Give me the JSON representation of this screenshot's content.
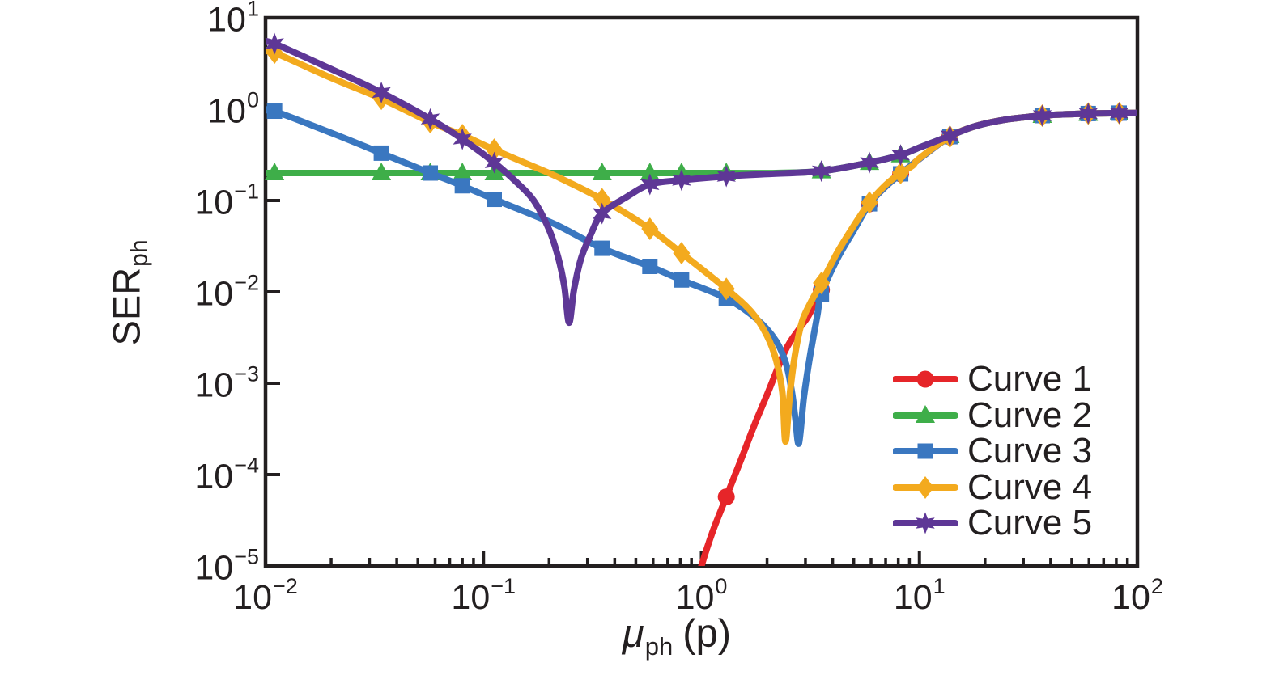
{
  "figure": {
    "background": "#ffffff",
    "axis_color": "#231f20",
    "text_color": "#231f20"
  },
  "chart_data": {
    "type": "line",
    "title": "",
    "xscale": "log",
    "yscale": "log",
    "xlim": [
      0.01,
      100
    ],
    "ylim": [
      1e-05,
      10
    ],
    "grid": false,
    "x_tick_exponents": [
      -2,
      -1,
      0,
      1,
      2
    ],
    "y_tick_exponents": [
      1,
      0,
      -1,
      -2,
      -3,
      -4,
      -5
    ],
    "xlabel": {
      "main": "μ",
      "sub": "ph",
      "suffix": "(p)"
    },
    "ylabel": {
      "main": "SER",
      "sub": "ph"
    },
    "legend": {
      "position": "lower-right"
    },
    "series": [
      {
        "name": "Curve 1",
        "color": "#e62529",
        "marker": "circle",
        "marker_x": [
          1.3,
          3.55,
          5.9,
          8.2,
          13.8,
          36.6,
          59.5,
          82.5
        ],
        "points": [
          [
            0.95,
            6.2e-06
          ],
          [
            1.0,
            1e-05
          ],
          [
            1.12,
            2.3e-05
          ],
          [
            1.3,
            5.7e-05
          ],
          [
            1.5,
            0.000135
          ],
          [
            1.75,
            0.00035
          ],
          [
            2.0,
            0.00075
          ],
          [
            2.43,
            0.0023
          ],
          [
            2.8,
            0.0039
          ],
          [
            3.1,
            0.0055
          ],
          [
            3.55,
            0.0105
          ],
          [
            4.2,
            0.024
          ],
          [
            5.0,
            0.048
          ],
          [
            5.9,
            0.092
          ],
          [
            7.0,
            0.142
          ],
          [
            8.2,
            0.196
          ],
          [
            10.0,
            0.285
          ],
          [
            13.8,
            0.5
          ],
          [
            18.0,
            0.65
          ],
          [
            25.0,
            0.77
          ],
          [
            36.6,
            0.85
          ],
          [
            48.0,
            0.88
          ],
          [
            59.5,
            0.895
          ],
          [
            82.5,
            0.905
          ],
          [
            100.0,
            0.91
          ]
        ]
      },
      {
        "name": "Curve 2",
        "color": "#3eae49",
        "marker": "triangle",
        "marker_x": [
          0.011,
          0.034,
          0.057,
          0.08,
          0.112,
          0.35,
          0.58,
          0.81,
          1.3,
          3.55,
          5.9,
          8.2,
          13.8,
          36.6,
          59.5,
          82.5
        ],
        "points": [
          [
            0.01,
            0.2
          ],
          [
            0.1,
            0.2
          ],
          [
            0.5,
            0.2
          ],
          [
            1.3,
            0.2
          ],
          [
            2.2,
            0.2
          ],
          [
            3.55,
            0.21
          ],
          [
            5.9,
            0.26
          ],
          [
            8.2,
            0.315
          ],
          [
            10.0,
            0.38
          ],
          [
            13.8,
            0.51
          ],
          [
            18.0,
            0.65
          ],
          [
            25.0,
            0.77
          ],
          [
            36.6,
            0.85
          ],
          [
            48.0,
            0.88
          ],
          [
            59.5,
            0.895
          ],
          [
            82.5,
            0.905
          ],
          [
            100.0,
            0.91
          ]
        ]
      },
      {
        "name": "Curve 3",
        "color": "#3a77c0",
        "marker": "square",
        "marker_x": [
          0.011,
          0.034,
          0.057,
          0.08,
          0.112,
          0.35,
          0.58,
          0.81,
          1.3,
          3.55,
          5.9,
          8.2,
          13.8,
          36.6,
          59.5,
          82.5
        ],
        "points": [
          [
            0.01,
            0.97
          ],
          [
            0.011,
            0.95
          ],
          [
            0.02,
            0.55
          ],
          [
            0.034,
            0.33
          ],
          [
            0.057,
            0.2
          ],
          [
            0.08,
            0.145
          ],
          [
            0.112,
            0.103
          ],
          [
            0.16,
            0.073
          ],
          [
            0.22,
            0.053
          ],
          [
            0.35,
            0.03
          ],
          [
            0.58,
            0.019
          ],
          [
            0.81,
            0.0135
          ],
          [
            1.3,
            0.0085
          ],
          [
            1.8,
            0.005
          ],
          [
            2.2,
            0.0029
          ],
          [
            2.45,
            0.0016
          ],
          [
            2.6,
            0.0008
          ],
          [
            2.7,
            0.0004
          ],
          [
            2.8,
            0.00022
          ],
          [
            2.95,
            0.0007
          ],
          [
            3.15,
            0.002
          ],
          [
            3.4,
            0.0055
          ],
          [
            3.55,
            0.0095
          ],
          [
            4.2,
            0.023
          ],
          [
            5.0,
            0.047
          ],
          [
            5.9,
            0.092
          ],
          [
            7.0,
            0.142
          ],
          [
            8.2,
            0.196
          ],
          [
            10.0,
            0.285
          ],
          [
            13.8,
            0.5
          ],
          [
            18.0,
            0.65
          ],
          [
            25.0,
            0.77
          ],
          [
            36.6,
            0.85
          ],
          [
            48.0,
            0.88
          ],
          [
            59.5,
            0.895
          ],
          [
            82.5,
            0.905
          ],
          [
            100.0,
            0.91
          ]
        ]
      },
      {
        "name": "Curve 4",
        "color": "#f3aa1e",
        "marker": "diamond",
        "marker_x": [
          0.011,
          0.034,
          0.057,
          0.08,
          0.112,
          0.35,
          0.58,
          0.81,
          1.3,
          3.55,
          5.9,
          8.2,
          13.8,
          36.6,
          59.5,
          82.5
        ],
        "points": [
          [
            0.01,
            4.3
          ],
          [
            0.011,
            4.15
          ],
          [
            0.02,
            2.2
          ],
          [
            0.034,
            1.3
          ],
          [
            0.057,
            0.72
          ],
          [
            0.08,
            0.52
          ],
          [
            0.112,
            0.36
          ],
          [
            0.16,
            0.25
          ],
          [
            0.22,
            0.18
          ],
          [
            0.35,
            0.103
          ],
          [
            0.58,
            0.049
          ],
          [
            0.81,
            0.0265
          ],
          [
            1.3,
            0.0108
          ],
          [
            1.7,
            0.006
          ],
          [
            2.0,
            0.0033
          ],
          [
            2.2,
            0.0018
          ],
          [
            2.35,
            0.0008
          ],
          [
            2.43,
            0.00023
          ],
          [
            2.55,
            0.0008
          ],
          [
            2.7,
            0.0022
          ],
          [
            2.9,
            0.0048
          ],
          [
            3.2,
            0.008
          ],
          [
            3.55,
            0.0125
          ],
          [
            4.2,
            0.027
          ],
          [
            5.0,
            0.053
          ],
          [
            5.9,
            0.095
          ],
          [
            7.0,
            0.148
          ],
          [
            8.2,
            0.2
          ],
          [
            9.3,
            0.24
          ],
          [
            10.0,
            0.29
          ],
          [
            13.8,
            0.5
          ],
          [
            18.0,
            0.65
          ],
          [
            25.0,
            0.77
          ],
          [
            36.6,
            0.85
          ],
          [
            48.0,
            0.88
          ],
          [
            59.5,
            0.895
          ],
          [
            82.5,
            0.905
          ],
          [
            100.0,
            0.91
          ]
        ]
      },
      {
        "name": "Curve 5",
        "color": "#5e3796",
        "marker": "star6",
        "marker_x": [
          0.011,
          0.034,
          0.057,
          0.08,
          0.112,
          0.35,
          0.58,
          0.81,
          1.3,
          3.55,
          5.9,
          8.2,
          13.8,
          36.6,
          59.5,
          82.5
        ],
        "points": [
          [
            0.01,
            5.4
          ],
          [
            0.011,
            5.2
          ],
          [
            0.02,
            2.75
          ],
          [
            0.034,
            1.52
          ],
          [
            0.057,
            0.78
          ],
          [
            0.08,
            0.47
          ],
          [
            0.112,
            0.26
          ],
          [
            0.14,
            0.163
          ],
          [
            0.17,
            0.1
          ],
          [
            0.2,
            0.048
          ],
          [
            0.22,
            0.024
          ],
          [
            0.235,
            0.0115
          ],
          [
            0.247,
            0.0046
          ],
          [
            0.26,
            0.0105
          ],
          [
            0.28,
            0.023
          ],
          [
            0.31,
            0.042
          ],
          [
            0.35,
            0.072
          ],
          [
            0.45,
            0.108
          ],
          [
            0.58,
            0.15
          ],
          [
            0.81,
            0.167
          ],
          [
            1.3,
            0.184
          ],
          [
            2.0,
            0.195
          ],
          [
            3.55,
            0.21
          ],
          [
            5.9,
            0.26
          ],
          [
            8.2,
            0.315
          ],
          [
            10.0,
            0.38
          ],
          [
            13.8,
            0.51
          ],
          [
            18.0,
            0.65
          ],
          [
            25.0,
            0.77
          ],
          [
            36.6,
            0.85
          ],
          [
            48.0,
            0.88
          ],
          [
            59.5,
            0.895
          ],
          [
            82.5,
            0.905
          ],
          [
            100.0,
            0.91
          ]
        ]
      }
    ]
  }
}
